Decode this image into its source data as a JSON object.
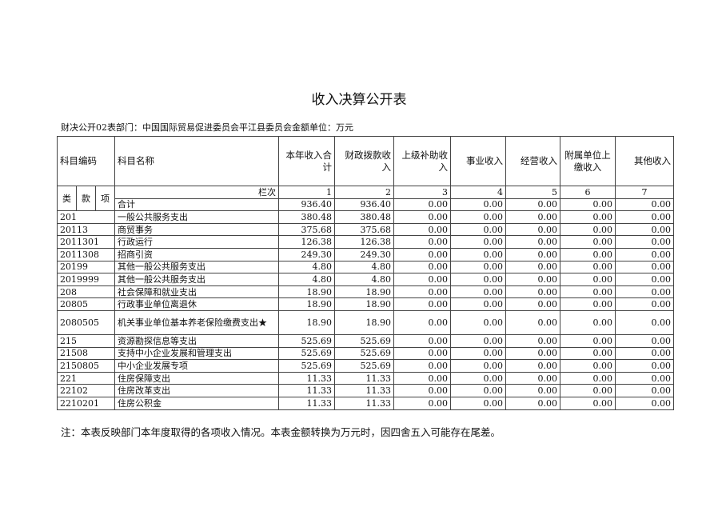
{
  "title": "收入决算公开表",
  "subtitle": "财决公开02表部门：中国国际贸易促进委员会平江县委员会金额单位：万元",
  "headers": {
    "code": "科目编码",
    "name": "科目名称",
    "c1": "本年收入合计",
    "c2": "财政拨款收入",
    "c3": "上级补助收入",
    "c4": "事业收入",
    "c5": "经营收入",
    "c6": "附属单位上缴收入",
    "c7": "其他收入"
  },
  "subheaders": {
    "lei": "类",
    "kuan": "款",
    "xiang": "项",
    "lanci": "栏次",
    "nums": [
      "1",
      "2",
      "3",
      "4",
      "5",
      "6",
      "7"
    ]
  },
  "rows": [
    {
      "code": "",
      "name": "合计",
      "v": [
        "936.40",
        "936.40",
        "0.00",
        "0.00",
        "0.00",
        "0.00",
        "0.00"
      ]
    },
    {
      "code": "201",
      "name": "一般公共服务支出",
      "v": [
        "380.48",
        "380.48",
        "0.00",
        "0.00",
        "0.00",
        "0.00",
        "0.00"
      ]
    },
    {
      "code": "20113",
      "name": "商贸事务",
      "v": [
        "375.68",
        "375.68",
        "0.00",
        "0.00",
        "0.00",
        "0.00",
        "0.00"
      ]
    },
    {
      "code": "2011301",
      "name": "行政运行",
      "v": [
        "126.38",
        "126.38",
        "0.00",
        "0.00",
        "0.00",
        "0.00",
        "0.00"
      ]
    },
    {
      "code": "2011308",
      "name": "招商引资",
      "v": [
        "249.30",
        "249.30",
        "0.00",
        "0.00",
        "0.00",
        "0.00",
        "0.00"
      ]
    },
    {
      "code": "20199",
      "name": "其他一般公共服务支出",
      "v": [
        "4.80",
        "4.80",
        "0.00",
        "0.00",
        "0.00",
        "0.00",
        "0.00"
      ]
    },
    {
      "code": "2019999",
      "name": "其他一般公共服务支出",
      "v": [
        "4.80",
        "4.80",
        "0.00",
        "0.00",
        "0.00",
        "0.00",
        "0.00"
      ]
    },
    {
      "code": "208",
      "name": "社会保障和就业支出",
      "v": [
        "18.90",
        "18.90",
        "0.00",
        "0.00",
        "0.00",
        "0.00",
        "0.00"
      ]
    },
    {
      "code": "20805",
      "name": "行政事业单位离退休",
      "v": [
        "18.90",
        "18.90",
        "0.00",
        "0.00",
        "0.00",
        "0.00",
        "0.00"
      ]
    },
    {
      "code": "2080505",
      "name": "机关事业单位基本养老保险缴费支出★",
      "v": [
        "18.90",
        "18.90",
        "0.00",
        "0.00",
        "0.00",
        "0.00",
        "0.00"
      ]
    },
    {
      "code": "215",
      "name": "资源勘探信息等支出",
      "v": [
        "525.69",
        "525.69",
        "0.00",
        "0.00",
        "0.00",
        "0.00",
        "0.00"
      ]
    },
    {
      "code": "21508",
      "name": "支持中小企业发展和管理支出",
      "v": [
        "525.69",
        "525.69",
        "0.00",
        "0.00",
        "0.00",
        "0.00",
        "0.00"
      ]
    },
    {
      "code": "2150805",
      "name": "中小企业发展专项",
      "v": [
        "525.69",
        "525.69",
        "0.00",
        "0.00",
        "0.00",
        "0.00",
        "0.00"
      ]
    },
    {
      "code": "221",
      "name": "住房保障支出",
      "v": [
        "11.33",
        "11.33",
        "0.00",
        "0.00",
        "0.00",
        "0.00",
        "0.00"
      ]
    },
    {
      "code": "22102",
      "name": "住房改革支出",
      "v": [
        "11.33",
        "11.33",
        "0.00",
        "0.00",
        "0.00",
        "0.00",
        "0.00"
      ]
    },
    {
      "code": "2210201",
      "name": "住房公积金",
      "v": [
        "11.33",
        "11.33",
        "0.00",
        "0.00",
        "0.00",
        "0.00",
        "0.00"
      ]
    }
  ],
  "note": "注：本表反映部门本年度取得的各项收入情况。本表金额转换为万元时，因四舍五入可能存在尾差。"
}
